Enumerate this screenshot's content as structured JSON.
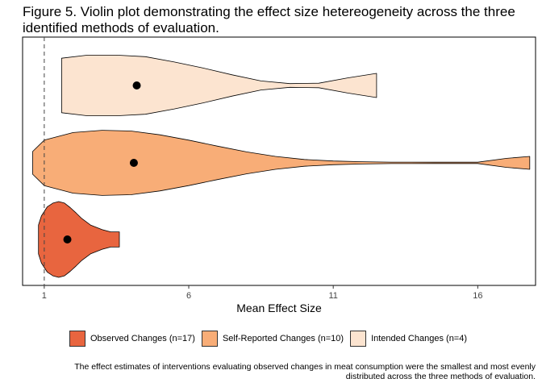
{
  "title": "Figure 5. Violin plot demonstrating the effect size hetereogeneity across the three identified methods of evaluation.",
  "caption_line1": "The effect estimates of interventions evaluating observed changes in meat consumption were the smallest and most evenly",
  "caption_line2": "distributed across the three methods of evaluation.",
  "chart_data": {
    "type": "violin",
    "title": "Figure 5. Violin plot demonstrating the effect size hetereogeneity across the three identified methods of evaluation.",
    "xlabel": "Mean Effect Size",
    "ylabel": "",
    "xlim": [
      0.25,
      18.0
    ],
    "xticks": [
      1,
      6,
      11,
      16
    ],
    "reference_line": {
      "x": 1,
      "style": "dashed"
    },
    "legend_position": "bottom",
    "grid": false,
    "series": [
      {
        "name": "Observed Changes (n=17)",
        "color": "#E8653F",
        "mean": 1.8,
        "min": 0.8,
        "max": 3.6,
        "density": [
          [
            0.8,
            0.38
          ],
          [
            0.9,
            0.62
          ],
          [
            1.1,
            0.86
          ],
          [
            1.3,
            0.96
          ],
          [
            1.5,
            1.0
          ],
          [
            1.7,
            0.96
          ],
          [
            1.9,
            0.84
          ],
          [
            2.1,
            0.7
          ],
          [
            2.3,
            0.55
          ],
          [
            2.6,
            0.38
          ],
          [
            3.0,
            0.26
          ],
          [
            3.3,
            0.2
          ],
          [
            3.6,
            0.2
          ]
        ]
      },
      {
        "name": "Self-Reported Changes (n=10)",
        "color": "#F8AD77",
        "mean": 4.1,
        "min": 0.6,
        "max": 17.8,
        "density": [
          [
            0.6,
            0.3
          ],
          [
            1.0,
            0.6
          ],
          [
            2.0,
            0.8
          ],
          [
            3.0,
            0.86
          ],
          [
            4.0,
            0.84
          ],
          [
            5.0,
            0.74
          ],
          [
            6.0,
            0.6
          ],
          [
            7.0,
            0.44
          ],
          [
            8.0,
            0.29
          ],
          [
            9.0,
            0.17
          ],
          [
            10.0,
            0.09
          ],
          [
            11.0,
            0.05
          ],
          [
            12.0,
            0.03
          ],
          [
            13.0,
            0.02
          ],
          [
            14.5,
            0.016
          ],
          [
            16.0,
            0.016
          ],
          [
            17.0,
            0.12
          ],
          [
            17.8,
            0.17
          ]
        ]
      },
      {
        "name": "Intended Changes (n=4)",
        "color": "#FCE4D0",
        "mean": 4.2,
        "min": 1.6,
        "max": 12.5,
        "density": [
          [
            1.6,
            0.72
          ],
          [
            2.5,
            0.8
          ],
          [
            3.5,
            0.8
          ],
          [
            4.5,
            0.76
          ],
          [
            5.5,
            0.62
          ],
          [
            6.5,
            0.46
          ],
          [
            7.5,
            0.28
          ],
          [
            8.5,
            0.12
          ],
          [
            9.5,
            0.05
          ],
          [
            10.5,
            0.06
          ],
          [
            11.5,
            0.2
          ],
          [
            12.5,
            0.32
          ]
        ]
      }
    ]
  }
}
